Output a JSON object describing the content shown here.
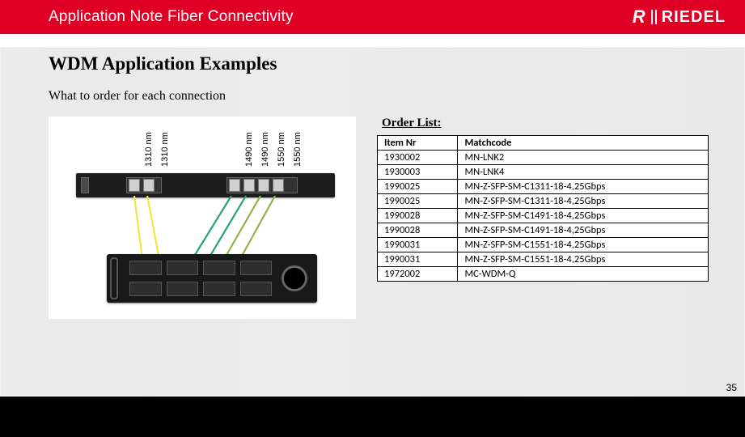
{
  "header": {
    "title": "Application Note Fiber Connectivity",
    "brand": "RIEDEL"
  },
  "headings": {
    "h1": "WDM Application Examples",
    "h2": "What to order for each connection",
    "order_title": "Order List:"
  },
  "diagram": {
    "wavelengths": [
      "1310 nm",
      "1310 nm",
      "1490 nm",
      "1490 nm",
      "1550 nm",
      "1550 nm"
    ],
    "cable_colors": {
      "1310": "#f4e642",
      "1490": "#2aa07a",
      "1550": "#8fb34a"
    }
  },
  "order_table": {
    "columns": [
      "Item Nr",
      "Matchcode"
    ],
    "rows": [
      [
        "1930002",
        "MN-LNK2"
      ],
      [
        "1930003",
        "MN-LNK4"
      ],
      [
        "1990025",
        "MN-Z-SFP-SM-C1311-18-4,25Gbps"
      ],
      [
        "1990025",
        "MN-Z-SFP-SM-C1311-18-4,25Gbps"
      ],
      [
        "1990028",
        "MN-Z-SFP-SM-C1491-18-4,25Gbps"
      ],
      [
        "1990028",
        "MN-Z-SFP-SM-C1491-18-4,25Gbps"
      ],
      [
        "1990031",
        "MN-Z-SFP-SM-C1551-18-4,25Gbps"
      ],
      [
        "1990031",
        "MN-Z-SFP-SM-C1551-18-4,25Gbps"
      ],
      [
        "1972002",
        "MC-WDM-Q"
      ]
    ]
  },
  "page_number": "35"
}
